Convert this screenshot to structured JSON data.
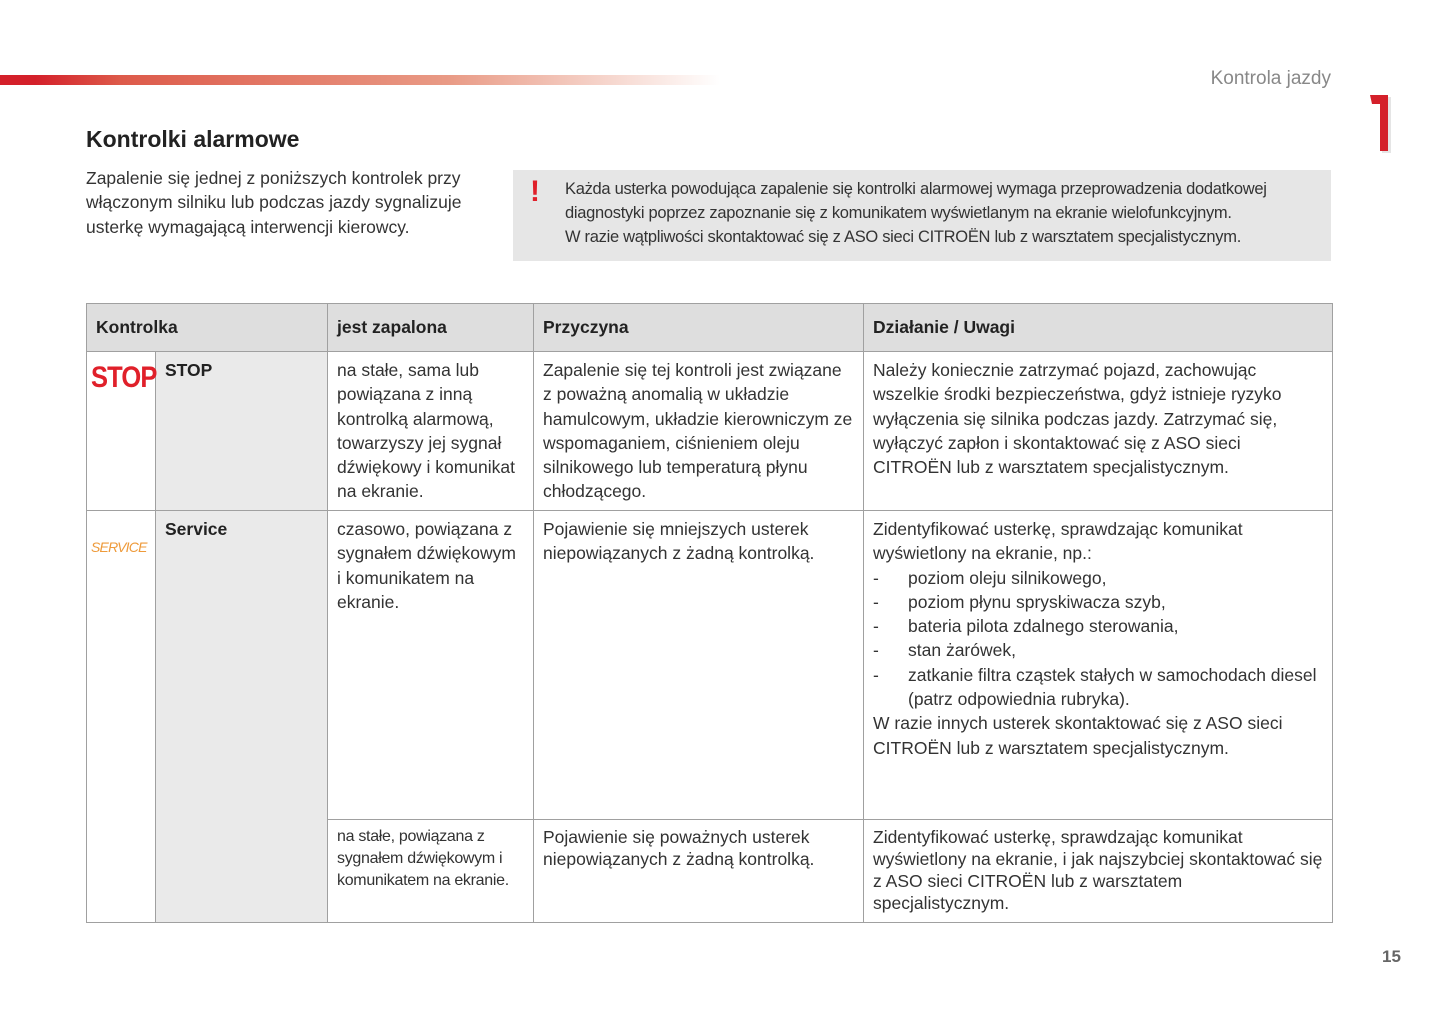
{
  "header": {
    "section_title": "Kontrola jazdy",
    "chapter_number": "1",
    "accent_color": "#d4202a"
  },
  "title": "Kontrolki alarmowe",
  "intro": "Zapalenie się jednej z poniższych kontrolek przy włączonym silniku lub podczas jazdy sygnalizuje usterkę wymagającą interwencji kierowcy.",
  "note": {
    "icon": "exclamation-icon",
    "lines": [
      "Każda usterka powodująca zapalenie się kontrolki alarmowej wymaga przeprowadzenia dodatkowej",
      "diagnostyki poprzez zapoznanie się z komunikatem wyświetlanym na ekranie wielofunkcyjnym.",
      "W razie wątpliwości skontaktować się z ASO sieci CITROËN lub z warsztatem specjalistycznym."
    ]
  },
  "table": {
    "headers": [
      "Kontrolka",
      "jest zapalona",
      "Przyczyna",
      "Działanie / Uwagi"
    ],
    "rows": [
      {
        "icon_text": "STOP",
        "icon_color": "#e0202a",
        "label": "STOP",
        "state": "na stałe, sama lub powiązana z inną kontrolką alarmową, towarzyszy jej sygnał dźwiękowy i komunikat na ekranie.",
        "cause": "Zapalenie się tej kontroli jest związane z poważną anomalią w układzie hamulcowym, układzie kierowniczym ze wspomaganiem, ciśnieniem oleju silnikowego lub temperaturą płynu chłodzącego.",
        "action": "Należy koniecznie zatrzymać pojazd, zachowując wszelkie środki bezpieczeństwa, gdyż istnieje ryzyko wyłączenia się silnika podczas jazdy. Zatrzymać się, wyłączyć zapłon i skontaktować się z ASO sieci CITROËN lub z warsztatem specjalistycznym."
      },
      {
        "icon_text": "SERVICE",
        "icon_color": "#ee9a3a",
        "label": "Service",
        "state": "czasowo, powiązana z sygnałem dźwiękowym i komunikatem na ekranie.",
        "cause": "Pojawienie się mniejszych usterek niepowiązanych z żadną kontrolką.",
        "action_intro": "Zidentyfikować usterkę, sprawdzając komunikat wyświetlony na ekranie, np.:",
        "action_items": [
          "poziom oleju silnikowego,",
          "poziom płynu spryskiwacza szyb,",
          "bateria pilota zdalnego sterowania,",
          "stan żarówek,",
          "zatkanie filtra cząstek stałych w samochodach diesel (patrz odpowiednia rubryka)."
        ],
        "action_outro": "W razie innych usterek skontaktować się z ASO sieci CITROËN lub z warsztatem specjalistycznym.",
        "bullet": "-"
      },
      {
        "state": "na stałe, powiązana z sygnałem dźwiękowym i komunikatem na ekranie.",
        "cause": "Pojawienie się poważnych usterek niepowiązanych z żadną kontrolką.",
        "action": "Zidentyfikować usterkę, sprawdzając komunikat wyświetlony na ekranie, i jak najszybciej skontaktować się z ASO sieci CITROËN lub z warsztatem specjalistycznym."
      }
    ]
  },
  "page_number": "15"
}
